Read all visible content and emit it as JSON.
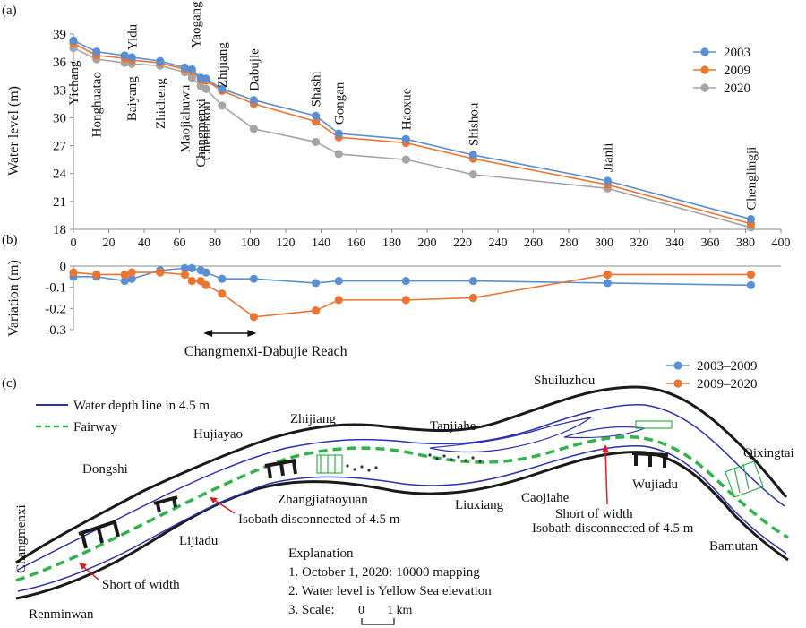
{
  "panel_labels": {
    "a": "(a)",
    "b": "(b)",
    "c": "(c)"
  },
  "chart_data": [
    {
      "type": "line",
      "panel": "(a)",
      "ylabel": "Water level (m)",
      "xlabel": "",
      "xlim": [
        0,
        400
      ],
      "ylim": [
        18,
        39
      ],
      "x_ticks": [
        "0",
        "20",
        "40",
        "60",
        "80",
        "100",
        "120",
        "140",
        "160",
        "180",
        "200",
        "220",
        "240",
        "260",
        "280",
        "300",
        "320",
        "340",
        "360",
        "380",
        "400"
      ],
      "y_ticks": [
        "18",
        "21",
        "24",
        "27",
        "30",
        "33",
        "36",
        "39"
      ],
      "legend_position": "top-right",
      "stations": [
        {
          "name": "Yichang",
          "x": 0
        },
        {
          "name": "Honghuatao",
          "x": 13
        },
        {
          "name": "Yidu",
          "x": 29
        },
        {
          "name": "Baiyang",
          "x": 33
        },
        {
          "name": "Zhicheng",
          "x": 49
        },
        {
          "name": "Maojiahuwu",
          "x": 63
        },
        {
          "name": "Yaogang",
          "x": 67
        },
        {
          "name": "Changmenxi",
          "x": 72
        },
        {
          "name": "Chenerkou",
          "x": 75
        },
        {
          "name": "Zhijiang",
          "x": 84
        },
        {
          "name": "Dabujie",
          "x": 102
        },
        {
          "name": "Shashi",
          "x": 137
        },
        {
          "name": "Gongan",
          "x": 150
        },
        {
          "name": "Haoxue",
          "x": 188
        },
        {
          "name": "Shishou",
          "x": 226
        },
        {
          "name": "Jianli",
          "x": 302
        },
        {
          "name": "Chenglingji",
          "x": 383
        }
      ],
      "x": [
        0,
        13,
        29,
        33,
        49,
        63,
        67,
        72,
        75,
        84,
        102,
        137,
        150,
        188,
        226,
        302,
        383
      ],
      "series": [
        {
          "name": "2003",
          "color": "#5b8fd4",
          "values": [
            38.3,
            37.1,
            36.7,
            36.5,
            36.1,
            35.4,
            35.2,
            34.3,
            34.2,
            33.1,
            31.9,
            30.2,
            28.3,
            27.7,
            26.0,
            23.2,
            19.1
          ]
        },
        {
          "name": "2009",
          "color": "#ec7530",
          "values": [
            38.0,
            36.7,
            36.4,
            36.2,
            35.9,
            35.2,
            35.0,
            34.1,
            34.0,
            32.9,
            31.5,
            29.6,
            27.9,
            27.3,
            25.6,
            22.8,
            18.6
          ]
        },
        {
          "name": "2020",
          "color": "#a5a5a5",
          "values": [
            37.5,
            36.3,
            35.9,
            35.8,
            35.6,
            34.9,
            34.3,
            33.4,
            33.1,
            31.3,
            28.8,
            27.4,
            26.1,
            25.5,
            23.9,
            22.4,
            18.2
          ]
        }
      ]
    },
    {
      "type": "line",
      "panel": "(b)",
      "ylabel": "Variation (m)",
      "xlim": [
        0,
        400
      ],
      "ylim": [
        -0.3,
        0
      ],
      "y_ticks": [
        "0",
        "-0.1",
        "-0.2",
        "-0.3"
      ],
      "legend_position": "top-right",
      "annotation": "Changmenxi-Dabujie Reach",
      "annotation_range": [
        75,
        102
      ],
      "x": [
        0,
        13,
        29,
        33,
        49,
        63,
        67,
        72,
        75,
        84,
        102,
        137,
        150,
        188,
        226,
        302,
        383
      ],
      "series": [
        {
          "name": "2003–2009",
          "color": "#5b8fd4",
          "values": [
            -0.05,
            -0.05,
            -0.07,
            -0.06,
            -0.02,
            -0.01,
            -0.01,
            -0.02,
            -0.03,
            -0.06,
            -0.06,
            -0.08,
            -0.07,
            -0.07,
            -0.07,
            -0.08,
            -0.09
          ]
        },
        {
          "name": "2009–2020",
          "color": "#ec7530",
          "values": [
            -0.03,
            -0.04,
            -0.04,
            -0.03,
            -0.03,
            -0.04,
            -0.07,
            -0.07,
            -0.09,
            -0.13,
            -0.24,
            -0.21,
            -0.16,
            -0.16,
            -0.15,
            -0.04,
            -0.04
          ]
        }
      ]
    }
  ],
  "map": {
    "legend": {
      "depth_line": "Water depth line in 4.5 m",
      "fairway": "Fairway"
    },
    "colors": {
      "depth_line": "#2b2fb0",
      "fairway": "#2fb34a",
      "annotation": "#d62020",
      "bank": "#1a1a1a"
    },
    "places": [
      "Shuiluzhou",
      "Zhijiang",
      "Hujiayao",
      "Tanjiahe",
      "Dongshi",
      "Qixingtai",
      "Zhangjiataoyuan",
      "Liuxiang",
      "Caojiahe",
      "Wujiadu",
      "Changmenxi",
      "Lijiadu",
      "Bamutan",
      "Renminwan"
    ],
    "annotations": {
      "isobath_left": "Isobath disconnected of 4.5 m",
      "short_left": "Short of width",
      "short_right": "Short of width",
      "isobath_right": "Isobath disconnected of 4.5 m"
    },
    "explanation": {
      "title": "Explanation",
      "items": [
        "1. October 1, 2020: 10000 mapping",
        "2. Water level is Yellow Sea elevation",
        "3. Scale:"
      ],
      "scale_zero": "0",
      "scale_km": "1 km"
    }
  }
}
